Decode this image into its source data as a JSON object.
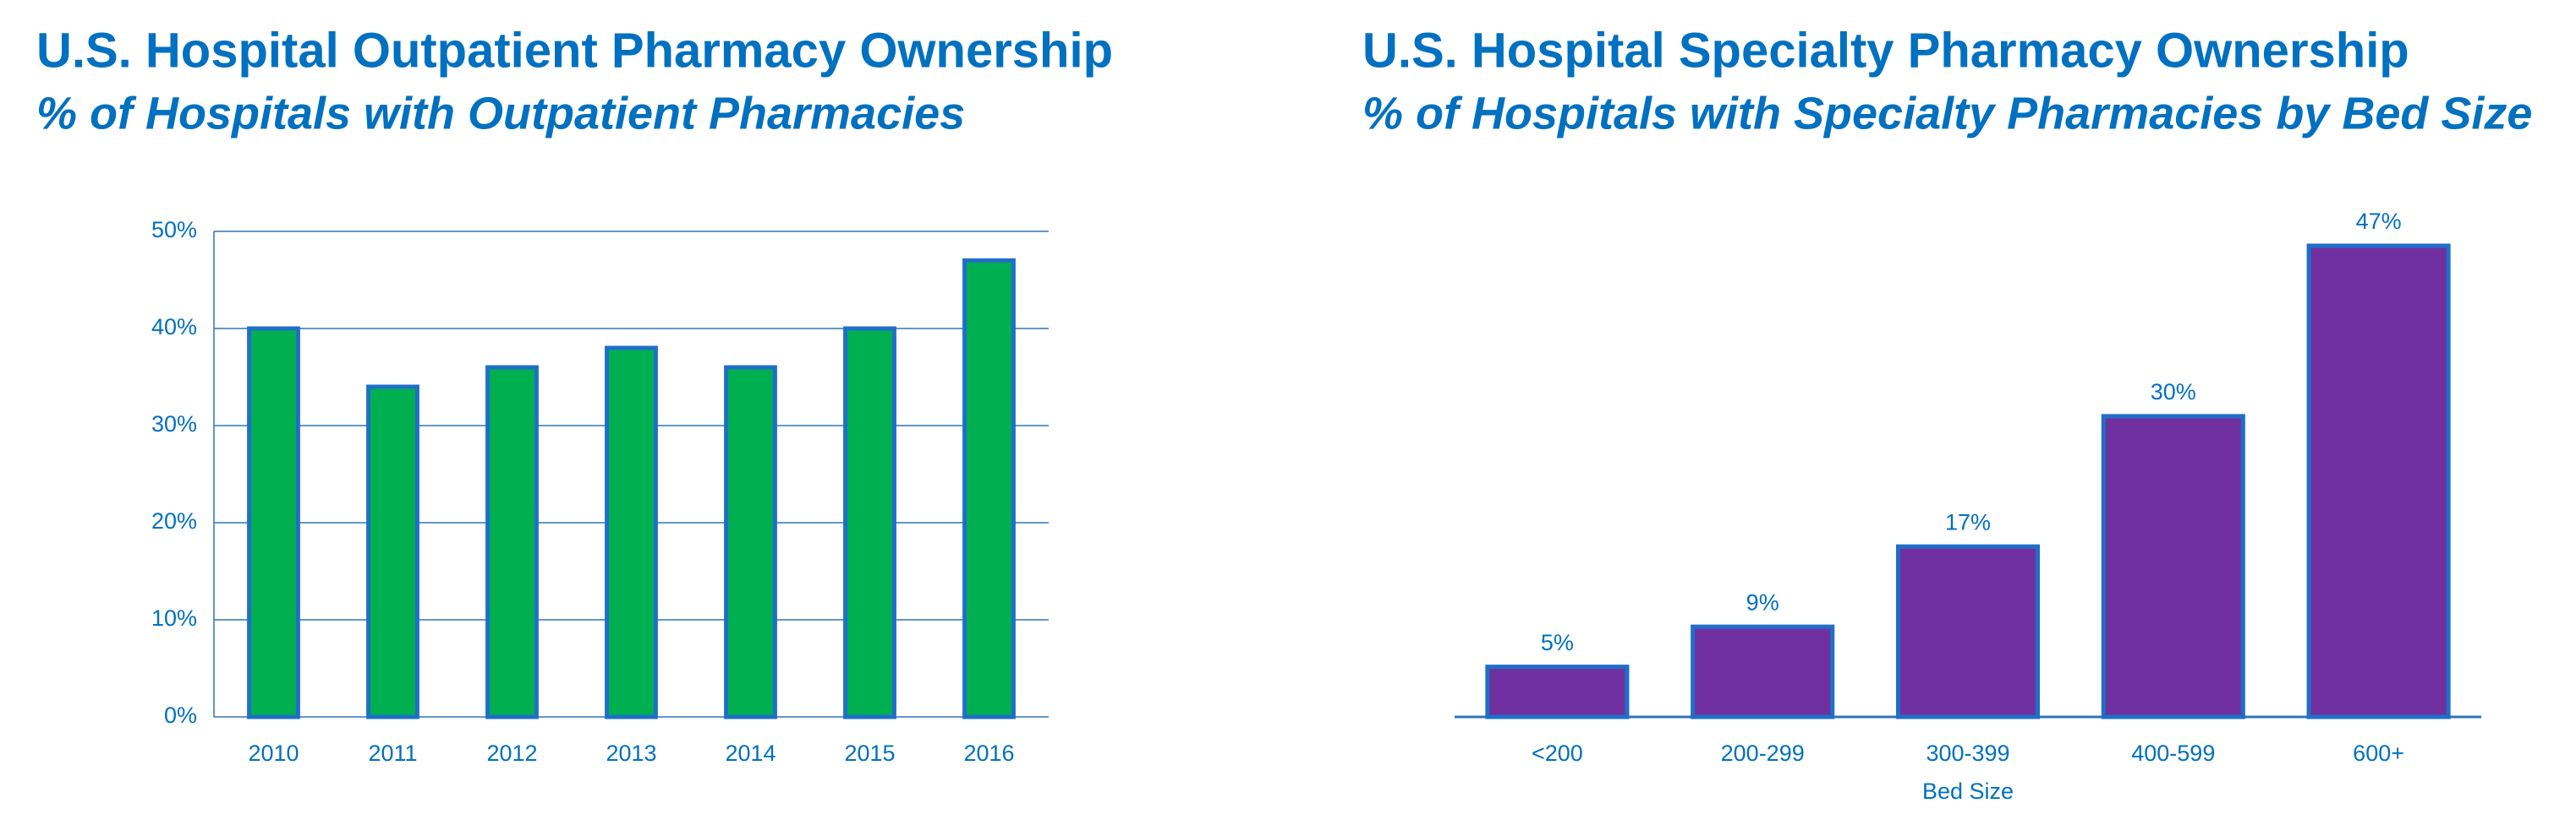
{
  "chart_data": [
    {
      "type": "bar",
      "title": "U.S. Hospital Outpatient Pharmacy Ownership",
      "subtitle": "% of Hospitals with Outpatient Pharmacies",
      "categories": [
        "2010",
        "2011",
        "2012",
        "2013",
        "2014",
        "2015",
        "2016"
      ],
      "values": [
        40,
        34,
        36,
        38,
        36,
        40,
        47
      ],
      "color": "#00b050",
      "ylim": [
        0,
        50
      ],
      "yticks": [
        {
          "value": 0,
          "label": "0%"
        },
        {
          "value": 10,
          "label": "10%"
        },
        {
          "value": 20,
          "label": "20%"
        },
        {
          "value": 30,
          "label": "30%"
        },
        {
          "value": 40,
          "label": "40%"
        },
        {
          "value": 50,
          "label": "50%"
        }
      ],
      "grid": true
    },
    {
      "type": "bar",
      "title": "U.S. Hospital Specialty Pharmacy Ownership",
      "subtitle": "% of Hospitals with Specialty Pharmacies by Bed Size",
      "x_label": "Bed Size",
      "categories": [
        "<200",
        "200-299",
        "300-399",
        "400-599",
        "600+"
      ],
      "values": [
        5,
        9,
        17,
        30,
        47
      ],
      "value_labels": [
        "5%",
        "9%",
        "17%",
        "30%",
        "47%"
      ],
      "color": "#7030a0"
    }
  ]
}
